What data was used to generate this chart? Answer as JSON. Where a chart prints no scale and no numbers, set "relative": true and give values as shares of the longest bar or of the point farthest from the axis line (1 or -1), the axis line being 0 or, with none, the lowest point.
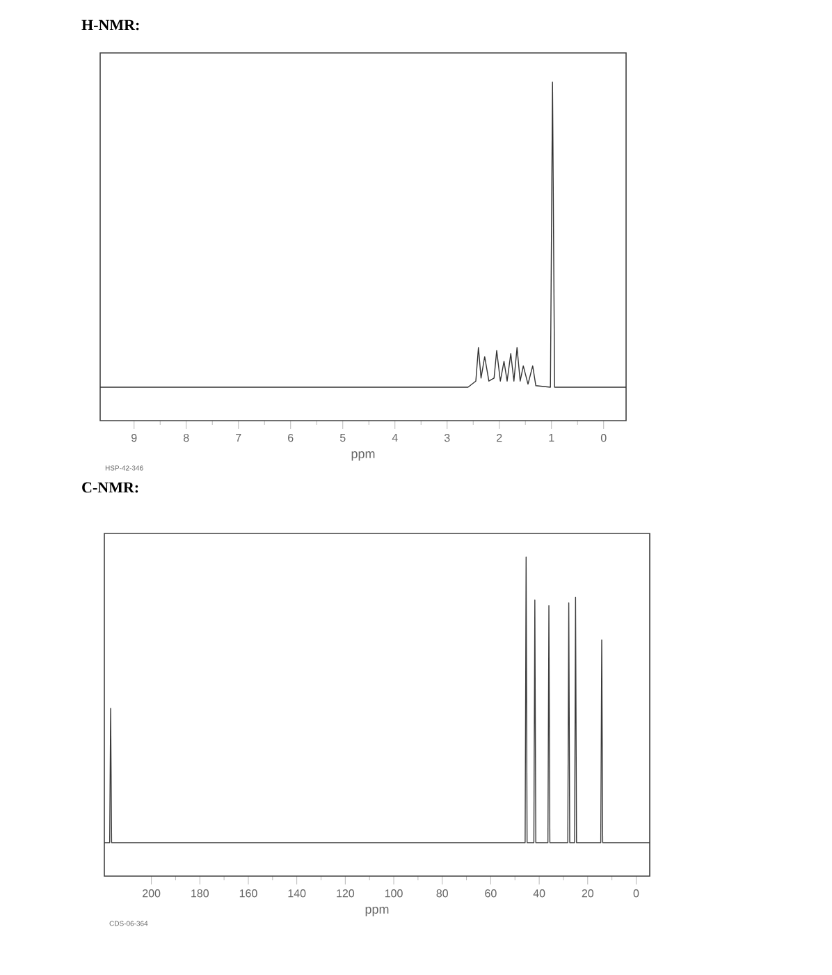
{
  "chart_data": [
    {
      "type": "line",
      "title": "H-NMR:",
      "xlabel": "ppm",
      "annotations": [
        "HSP-42-346"
      ],
      "relative": true,
      "xlim": [
        9.65,
        -0.43
      ],
      "xticks": [
        9,
        8,
        7,
        6,
        5,
        4,
        3,
        2,
        1,
        0
      ],
      "tick_labels": "x",
      "series": [
        {
          "color": "#333333",
          "x": [
            9.65,
            2.6,
            2.45,
            2.4,
            2.35,
            2.28,
            2.2,
            2.1,
            2.05,
            1.98,
            1.91,
            1.85,
            1.78,
            1.72,
            1.66,
            1.6,
            1.54,
            1.45,
            1.36,
            1.3,
            1.02,
            0.98,
            0.94,
            -0.43
          ],
          "values": [
            0,
            0,
            0.02,
            0.13,
            0.03,
            0.1,
            0.02,
            0.03,
            0.12,
            0.02,
            0.085,
            0.02,
            0.11,
            0.02,
            0.13,
            0.02,
            0.07,
            0.01,
            0.07,
            0.005,
            0,
            1.0,
            0,
            0
          ]
        }
      ]
    },
    {
      "type": "line",
      "title": "C-NMR:",
      "xlabel": "ppm",
      "annotations": [
        "CDS-06-364"
      ],
      "relative": true,
      "xlim": [
        219.4,
        -5.6
      ],
      "xticks": [
        200,
        180,
        160,
        140,
        120,
        100,
        80,
        60,
        40,
        20,
        0
      ],
      "tick_labels": "x",
      "series": [
        {
          "color": "#3a3a3a",
          "x": [
            219.4,
            217.2,
            216.8,
            216.4,
            45.8,
            45.4,
            45.0,
            42.2,
            41.8,
            41.4,
            36.4,
            36.0,
            35.6,
            28.2,
            27.8,
            27.4,
            25.4,
            25.0,
            24.6,
            14.6,
            14.2,
            13.8,
            -5.6
          ],
          "values": [
            0,
            0,
            0.47,
            0,
            0,
            1.0,
            0,
            0,
            0.85,
            0,
            0,
            0.83,
            0,
            0,
            0.84,
            0,
            0,
            0.86,
            0,
            0,
            0.71,
            0,
            0
          ]
        }
      ]
    }
  ]
}
